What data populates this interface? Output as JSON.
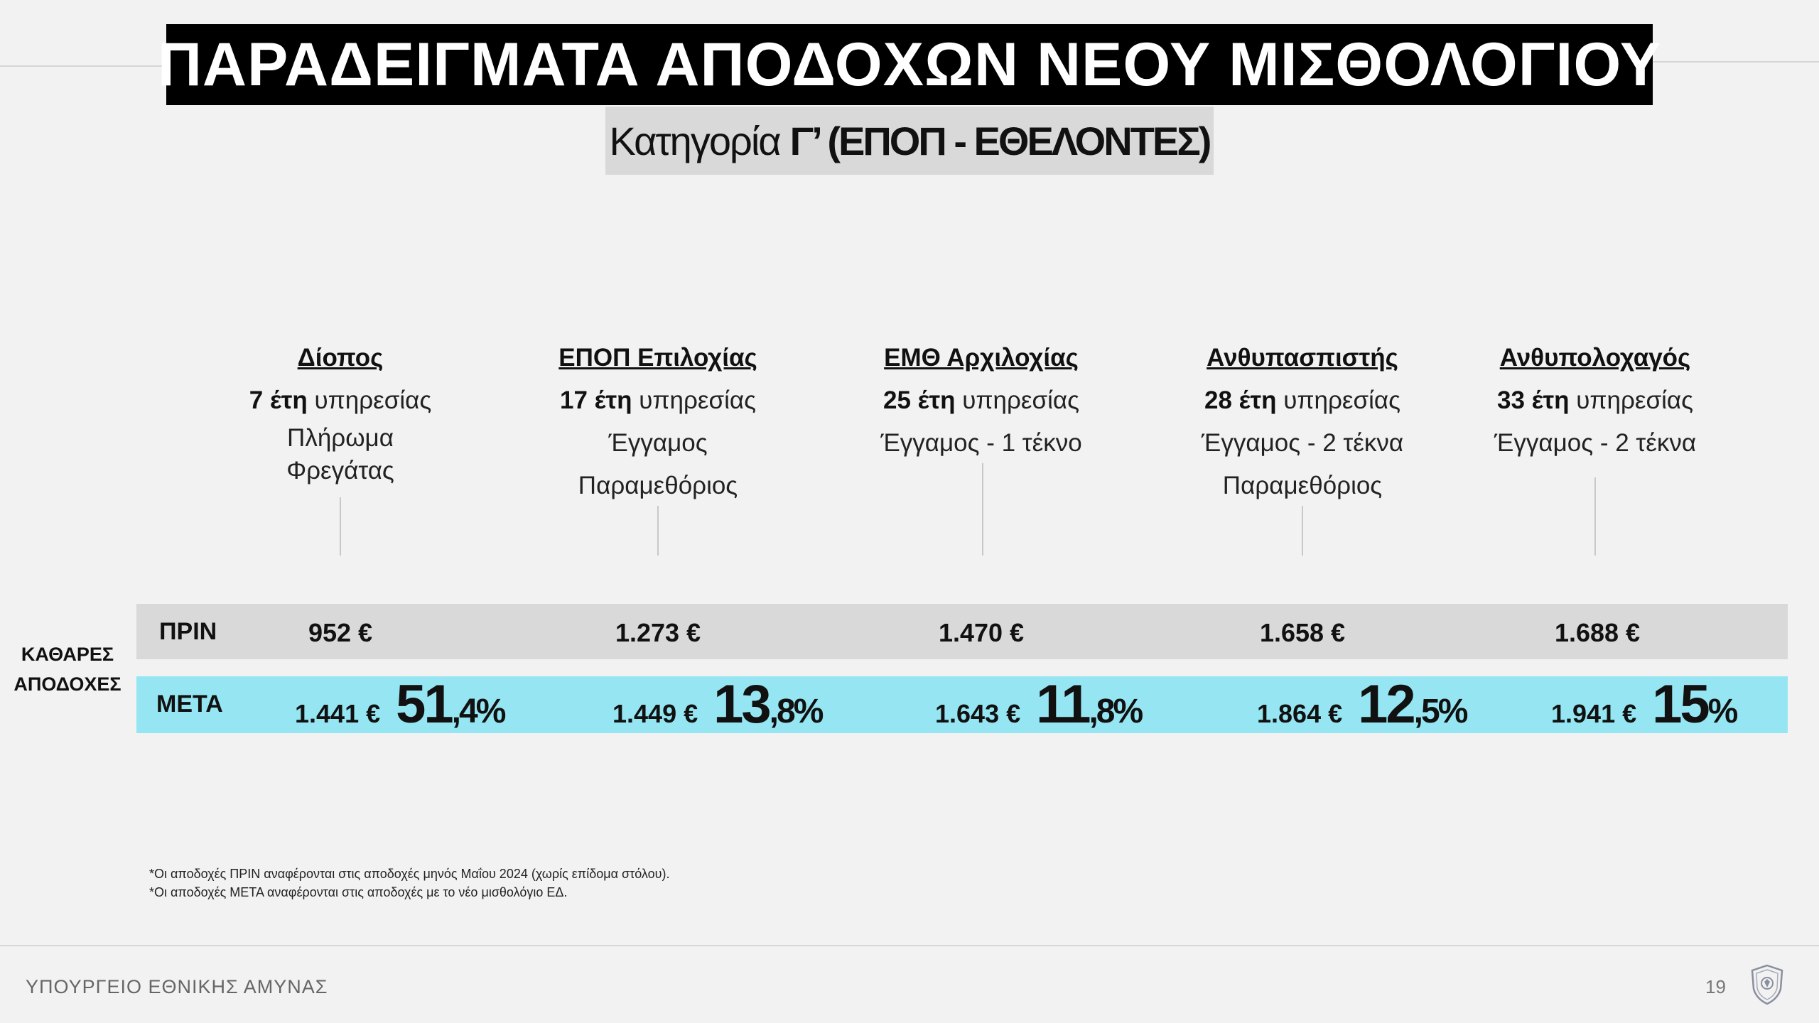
{
  "title": "ΠΑΡΑΔΕΙΓΜΑΤΑ ΑΠΟΔΟΧΩΝ ΝΕΟΥ ΜΙΣΘΟΛΟΓΙΟΥ",
  "subtitle": {
    "prefix": "Κατηγορία",
    "strong": "Γ’ (ΕΠΟΠ - ΕΘΕΛΟΝΤΕΣ)"
  },
  "row_header": [
    "ΚΑΘΑΡΕΣ",
    "ΑΠΟΔΟΧΕΣ"
  ],
  "rows": {
    "before_label": "ΠΡΙΝ",
    "after_label": "ΜΕΤΑ"
  },
  "columns": [
    {
      "rank": "Δίοπος",
      "years": "7 έτη",
      "years_suffix": "υπηρεσίας",
      "details": [
        "Πλήρωμα",
        "Φρεγάτας"
      ],
      "before": "952 €",
      "after": "1.441 €",
      "pct_int": "51",
      "pct_dec": ",4%"
    },
    {
      "rank": "ΕΠΟΠ Επιλοχίας",
      "years": "17 έτη",
      "years_suffix": "υπηρεσίας",
      "details": [
        "Έγγαμος",
        "Παραμεθόριος"
      ],
      "before": "1.273 €",
      "after": "1.449 €",
      "pct_int": "13",
      "pct_dec": ",8%"
    },
    {
      "rank": "ΕΜΘ Αρχιλοχίας",
      "years": "25 έτη",
      "years_suffix": "υπηρεσίας",
      "details": [
        "Έγγαμος - 1 τέκνο"
      ],
      "before": "1.470 €",
      "after": "1.643 €",
      "pct_int": "11",
      "pct_dec": ",8%"
    },
    {
      "rank": "Ανθυπασπιστής",
      "years": "28 έτη",
      "years_suffix": "υπηρεσίας",
      "details": [
        "Έγγαμος - 2 τέκνα",
        "Παραμεθόριος"
      ],
      "before": "1.658 €",
      "after": "1.864 €",
      "pct_int": "12",
      "pct_dec": ",5%"
    },
    {
      "rank": "Ανθυπολοχαγός",
      "years": "33 έτη",
      "years_suffix": "υπηρεσίας",
      "details": [
        "Έγγαμος - 2 τέκνα"
      ],
      "before": "1.688 €",
      "after": "1.941 €",
      "pct_int": "15",
      "pct_dec": "%"
    }
  ],
  "notes": [
    "*Οι αποδοχές ΠΡΙΝ αναφέρονται στις αποδοχές μηνός Μαΐου 2024 (χωρίς επίδομα στόλου).",
    "*Οι αποδοχές ΜΕΤΑ αναφέρονται στις αποδοχές με το νέο μισθολόγιο ΕΔ."
  ],
  "footer": {
    "ministry": "ΥΠΟΥΡΓΕΙΟ ΕΘΝΙΚΗΣ ΑΜΥΝΑΣ",
    "page": "19"
  },
  "icons": {
    "logo": "ministry-crest-icon"
  }
}
